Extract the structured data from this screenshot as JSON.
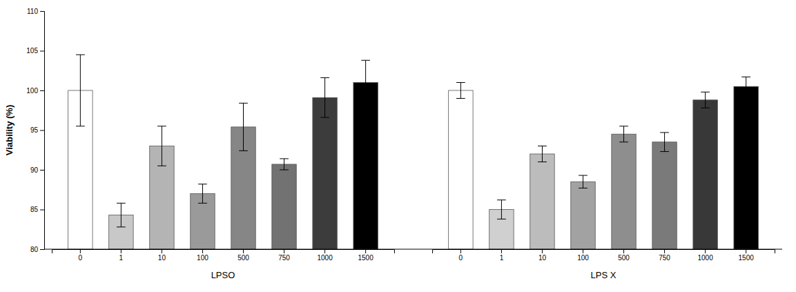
{
  "chart_data": {
    "type": "bar",
    "categories": [
      "0",
      "1",
      "10",
      "100",
      "500",
      "750",
      "1000",
      "1500"
    ],
    "series": [
      {
        "name": "LPSO",
        "values": [
          100.0,
          84.3,
          93.0,
          87.0,
          95.4,
          90.7,
          99.1,
          101.0
        ],
        "errors": [
          4.5,
          1.5,
          2.5,
          1.2,
          3.0,
          0.7,
          2.5,
          2.8
        ],
        "colors": [
          "#ffffff",
          "#c8c8c8",
          "#b4b4b4",
          "#9a9a9a",
          "#868686",
          "#727272",
          "#3c3c3c",
          "#000000"
        ]
      },
      {
        "name": "LPS X",
        "values": [
          100.0,
          85.0,
          92.0,
          88.5,
          94.5,
          93.5,
          98.8,
          100.5
        ],
        "errors": [
          1.0,
          1.2,
          1.0,
          0.8,
          1.0,
          1.2,
          1.0,
          1.2
        ],
        "colors": [
          "#ffffff",
          "#d0d0d0",
          "#bcbcbc",
          "#a2a2a2",
          "#8e8e8e",
          "#7a7a7a",
          "#383838",
          "#000000"
        ]
      }
    ],
    "ylabel": "Viability (%)",
    "ylim": [
      80,
      110
    ],
    "yticks": [
      80,
      85,
      90,
      95,
      100,
      105,
      110
    ],
    "grid": false
  }
}
